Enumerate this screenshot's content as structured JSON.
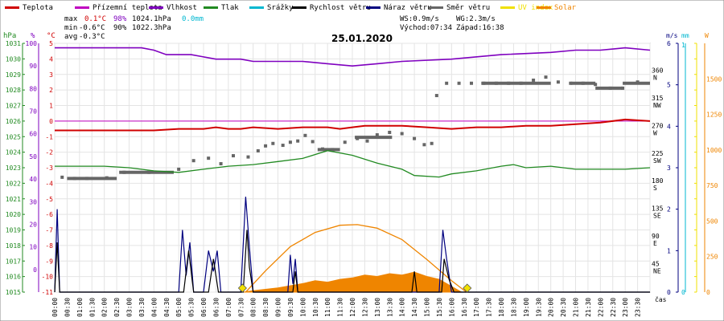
{
  "chart_data": {
    "type": "line",
    "title": "25.01.2020",
    "legend": [
      {
        "label": "Teplota",
        "color": "#d00000"
      },
      {
        "label": "Přízemní teplota",
        "color": "#c000c0"
      },
      {
        "label": "Vlhkost",
        "color": "#7f00bf"
      },
      {
        "label": "Tlak",
        "color": "#218a21"
      },
      {
        "label": "Srážky",
        "color": "#00b7d0"
      },
      {
        "label": "Rychlost větru",
        "color": "#000000"
      },
      {
        "label": "Náraz větru",
        "color": "#00007f"
      },
      {
        "label": "Směr větru",
        "color": "#666666"
      },
      {
        "label": "UV index",
        "color": "#f0e000"
      },
      {
        "label": "Solar",
        "color": "#ef8500"
      }
    ],
    "stats": {
      "max": {
        "label": "max",
        "temp": "0.1°C",
        "hum": "98%",
        "press": "1024.1hPa",
        "rain": "0.0mm"
      },
      "min": {
        "label": "min",
        "temp": "-0.6°C",
        "hum": "90%",
        "press": "1022.3hPa"
      },
      "avg": {
        "label": "avg",
        "temp": "-0.3°C"
      },
      "ws": "WS:0.9m/s",
      "wg": "WG:2.3m/s",
      "sunrise": "Východ:07:34",
      "sunset": "Západ:16:38"
    },
    "axes": {
      "hpa": {
        "unit": "hPa",
        "ticks": [
          "1031",
          "1030",
          "1029",
          "1028",
          "1027",
          "1026",
          "1025",
          "1024",
          "1023",
          "1022",
          "1021",
          "1020",
          "1019",
          "1018",
          "1017",
          "1016",
          "1015"
        ]
      },
      "pct": {
        "unit": "%",
        "ticks": [
          "100",
          "90",
          "80",
          "70",
          "60",
          "50",
          "40",
          "30",
          "20",
          "10",
          "0"
        ]
      },
      "temp": {
        "unit": "°C",
        "ticks": [
          "5",
          "4",
          "3",
          "2",
          "1",
          "0",
          "-1",
          "-2",
          "-3",
          "-4",
          "-5",
          "-6",
          "-7",
          "-8",
          "-9",
          "-10",
          "-11"
        ]
      },
      "dir": {
        "ticks": [
          {
            "deg": "360",
            "dir": "N"
          },
          {
            "deg": "315",
            "dir": "NW"
          },
          {
            "deg": "270",
            "dir": "W"
          },
          {
            "deg": "225",
            "dir": "SW"
          },
          {
            "deg": "180",
            "dir": "S"
          },
          {
            "deg": "135",
            "dir": "SE"
          },
          {
            "deg": "90",
            "dir": "E"
          },
          {
            "deg": "45",
            "dir": "NE"
          }
        ]
      },
      "ms": {
        "unit": "m/s",
        "ticks": [
          "6",
          "5",
          "4",
          "3",
          "2",
          "1",
          "0"
        ]
      },
      "mm": {
        "unit": "mm",
        "ticks": [
          "1",
          "0"
        ]
      },
      "w": {
        "unit": "W",
        "ticks": [
          "1500",
          "1250",
          "1000",
          "750",
          "500",
          "250",
          "0"
        ]
      },
      "x_label": "čas",
      "x_ticks": [
        "00:00",
        "00:30",
        "01:00",
        "01:30",
        "02:00",
        "02:30",
        "03:00",
        "03:30",
        "04:00",
        "04:30",
        "05:00",
        "05:30",
        "06:00",
        "06:30",
        "07:00",
        "07:30",
        "08:00",
        "08:30",
        "09:00",
        "09:30",
        "10:00",
        "10:30",
        "11:00",
        "11:30",
        "12:00",
        "12:30",
        "13:00",
        "13:30",
        "14:00",
        "14:30",
        "15:00",
        "15:30",
        "16:00",
        "16:30",
        "17:00",
        "17:30",
        "18:00",
        "18:30",
        "19:00",
        "19:30",
        "20:00",
        "20:30",
        "21:00",
        "21:30",
        "22:00",
        "22:30",
        "23:00",
        "23:30"
      ]
    },
    "series": {
      "temperature_c": [
        [
          0,
          -0.6
        ],
        [
          2,
          -0.6
        ],
        [
          4,
          -0.6
        ],
        [
          5,
          -0.5
        ],
        [
          6,
          -0.5
        ],
        [
          6.5,
          -0.4
        ],
        [
          7,
          -0.5
        ],
        [
          7.5,
          -0.5
        ],
        [
          8,
          -0.4
        ],
        [
          9,
          -0.5
        ],
        [
          10,
          -0.4
        ],
        [
          11,
          -0.4
        ],
        [
          11.5,
          -0.5
        ],
        [
          12,
          -0.4
        ],
        [
          12.5,
          -0.3
        ],
        [
          13,
          -0.3
        ],
        [
          14,
          -0.3
        ],
        [
          15,
          -0.4
        ],
        [
          16,
          -0.5
        ],
        [
          17,
          -0.4
        ],
        [
          18,
          -0.4
        ],
        [
          19,
          -0.3
        ],
        [
          20,
          -0.3
        ],
        [
          21,
          -0.2
        ],
        [
          22,
          -0.1
        ],
        [
          23,
          0.1
        ],
        [
          24,
          0.0
        ]
      ],
      "humidity_pct": [
        [
          0,
          98
        ],
        [
          3.5,
          98
        ],
        [
          4,
          97
        ],
        [
          4.5,
          95
        ],
        [
          5.5,
          95
        ],
        [
          6,
          94
        ],
        [
          6.5,
          93
        ],
        [
          7.5,
          93
        ],
        [
          8,
          92
        ],
        [
          9,
          92
        ],
        [
          10,
          92
        ],
        [
          11,
          91
        ],
        [
          12,
          90
        ],
        [
          13,
          91
        ],
        [
          14,
          92
        ],
        [
          16,
          93
        ],
        [
          18,
          95
        ],
        [
          20,
          96
        ],
        [
          21,
          97
        ],
        [
          22,
          97
        ],
        [
          23,
          98
        ],
        [
          24,
          97
        ]
      ],
      "pressure_hpa": [
        [
          0,
          1023.1
        ],
        [
          2,
          1023.1
        ],
        [
          3,
          1023.0
        ],
        [
          4,
          1022.8
        ],
        [
          5,
          1022.7
        ],
        [
          6,
          1022.9
        ],
        [
          7,
          1023.1
        ],
        [
          8,
          1023.2
        ],
        [
          9,
          1023.4
        ],
        [
          10,
          1023.6
        ],
        [
          11,
          1024.1
        ],
        [
          12,
          1023.8
        ],
        [
          13,
          1023.3
        ],
        [
          14,
          1022.9
        ],
        [
          14.5,
          1022.5
        ],
        [
          15.5,
          1022.4
        ],
        [
          16,
          1022.6
        ],
        [
          17,
          1022.8
        ],
        [
          18,
          1023.1
        ],
        [
          18.5,
          1023.2
        ],
        [
          19,
          1023.0
        ],
        [
          20,
          1023.1
        ],
        [
          21,
          1022.9
        ],
        [
          22,
          1022.9
        ],
        [
          23,
          1022.9
        ],
        [
          24,
          1023.0
        ]
      ],
      "wind_speed_ms": [
        [
          0,
          0
        ],
        [
          0.1,
          1.2
        ],
        [
          0.2,
          0
        ],
        [
          5.2,
          0
        ],
        [
          5.4,
          1.0
        ],
        [
          5.6,
          0
        ],
        [
          6.2,
          0
        ],
        [
          6.4,
          0.8
        ],
        [
          6.6,
          0
        ],
        [
          7.6,
          0
        ],
        [
          7.75,
          1.5
        ],
        [
          7.85,
          0.6
        ],
        [
          8,
          0
        ],
        [
          9.6,
          0
        ],
        [
          9.7,
          0.5
        ],
        [
          9.8,
          0
        ],
        [
          14.4,
          0
        ],
        [
          14.5,
          0.5
        ],
        [
          14.6,
          0
        ],
        [
          15.6,
          0
        ],
        [
          15.7,
          0.8
        ],
        [
          15.9,
          0.3
        ],
        [
          16.1,
          0
        ],
        [
          24,
          0
        ]
      ],
      "wind_gust_ms": [
        [
          0,
          0
        ],
        [
          0.1,
          2.0
        ],
        [
          0.2,
          0
        ],
        [
          5.0,
          0
        ],
        [
          5.15,
          1.5
        ],
        [
          5.3,
          0.4
        ],
        [
          5.45,
          1.2
        ],
        [
          5.6,
          0
        ],
        [
          6.0,
          0
        ],
        [
          6.2,
          1.0
        ],
        [
          6.4,
          0.5
        ],
        [
          6.55,
          1.0
        ],
        [
          6.7,
          0
        ],
        [
          7.5,
          0
        ],
        [
          7.7,
          2.3
        ],
        [
          7.85,
          1.1
        ],
        [
          8.0,
          0
        ],
        [
          9.4,
          0
        ],
        [
          9.5,
          0.9
        ],
        [
          9.6,
          0.2
        ],
        [
          9.7,
          0.8
        ],
        [
          9.8,
          0
        ],
        [
          15.5,
          0
        ],
        [
          15.65,
          1.5
        ],
        [
          15.8,
          0.8
        ],
        [
          16.0,
          0
        ],
        [
          24,
          0
        ]
      ],
      "wind_dir_deg": [
        [
          0.3,
          187
        ],
        [
          0.8,
          185
        ],
        [
          1.3,
          185
        ],
        [
          2.1,
          186
        ],
        [
          2.8,
          195
        ],
        [
          3.8,
          195
        ],
        [
          5,
          200
        ],
        [
          5.6,
          214
        ],
        [
          6.2,
          218
        ],
        [
          6.7,
          209
        ],
        [
          7.2,
          222
        ],
        [
          7.8,
          220
        ],
        [
          8.2,
          230
        ],
        [
          8.5,
          238
        ],
        [
          8.8,
          242
        ],
        [
          9.2,
          239
        ],
        [
          9.5,
          244
        ],
        [
          9.8,
          246
        ],
        [
          10.1,
          255
        ],
        [
          10.4,
          245
        ],
        [
          10.8,
          233
        ],
        [
          11.2,
          232
        ],
        [
          11.7,
          244
        ],
        [
          12.2,
          250
        ],
        [
          12.6,
          246
        ],
        [
          13.0,
          256
        ],
        [
          13.5,
          260
        ],
        [
          14.0,
          258
        ],
        [
          14.5,
          250
        ],
        [
          14.9,
          240
        ],
        [
          15.2,
          242
        ],
        [
          15.4,
          320
        ],
        [
          15.8,
          340
        ],
        [
          16.3,
          340
        ],
        [
          16.8,
          340
        ],
        [
          17.3,
          340
        ],
        [
          17.8,
          340
        ],
        [
          18.3,
          340
        ],
        [
          18.8,
          340
        ],
        [
          19.3,
          345
        ],
        [
          19.8,
          350
        ],
        [
          20.3,
          342
        ],
        [
          20.8,
          340
        ],
        [
          21.3,
          340
        ],
        [
          21.8,
          338
        ],
        [
          22.4,
          332
        ],
        [
          22.9,
          332
        ],
        [
          23.5,
          342
        ]
      ],
      "solar_w": [
        [
          7.6,
          0
        ],
        [
          8,
          10
        ],
        [
          9,
          30
        ],
        [
          10,
          60
        ],
        [
          10.5,
          80
        ],
        [
          11,
          70
        ],
        [
          11.5,
          90
        ],
        [
          12,
          100
        ],
        [
          12.5,
          120
        ],
        [
          13,
          110
        ],
        [
          13.5,
          130
        ],
        [
          14,
          120
        ],
        [
          14.5,
          140
        ],
        [
          15,
          110
        ],
        [
          15.5,
          90
        ],
        [
          16,
          40
        ],
        [
          16.4,
          0
        ]
      ],
      "solar_theoretical_w": [
        [
          7.7,
          0
        ],
        [
          8.5,
          150
        ],
        [
          9.5,
          320
        ],
        [
          10.5,
          420
        ],
        [
          11.5,
          470
        ],
        [
          12.2,
          475
        ],
        [
          13,
          450
        ],
        [
          14,
          370
        ],
        [
          15,
          230
        ],
        [
          16,
          80
        ],
        [
          16.6,
          0
        ]
      ],
      "uv_markers_hour": [
        7.57,
        16.63
      ]
    }
  }
}
